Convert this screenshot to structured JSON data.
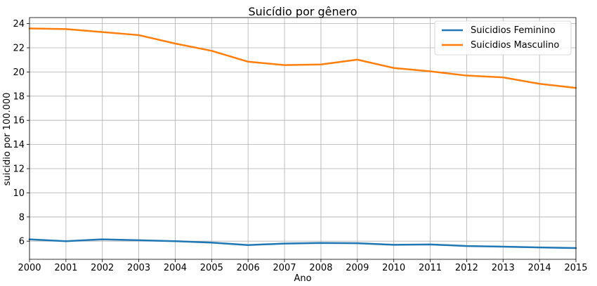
{
  "chart_data": {
    "type": "line",
    "title": "Suicídio por gênero",
    "xlabel": "Ano",
    "ylabel": "suicidio por 100.000",
    "x": [
      2000,
      2001,
      2002,
      2003,
      2004,
      2005,
      2006,
      2007,
      2008,
      2009,
      2010,
      2011,
      2012,
      2013,
      2014,
      2015
    ],
    "xlim": [
      2000,
      2015
    ],
    "ylim": [
      4.5,
      24.5
    ],
    "yticks": [
      6,
      8,
      10,
      12,
      14,
      16,
      18,
      20,
      22,
      24
    ],
    "grid": true,
    "legend_position": "top-right",
    "series": [
      {
        "name": "Suicidios Feminino",
        "color": "#1f77b4",
        "values": [
          6.15,
          6.0,
          6.15,
          6.08,
          6.0,
          5.88,
          5.68,
          5.8,
          5.85,
          5.83,
          5.7,
          5.73,
          5.6,
          5.55,
          5.48,
          5.43
        ]
      },
      {
        "name": "Suicidios Masculino",
        "color": "#ff7f0e",
        "values": [
          23.6,
          23.55,
          23.3,
          23.05,
          22.35,
          21.75,
          20.85,
          20.57,
          20.62,
          21.02,
          20.33,
          20.05,
          19.7,
          19.55,
          19.02,
          18.68
        ]
      }
    ]
  }
}
